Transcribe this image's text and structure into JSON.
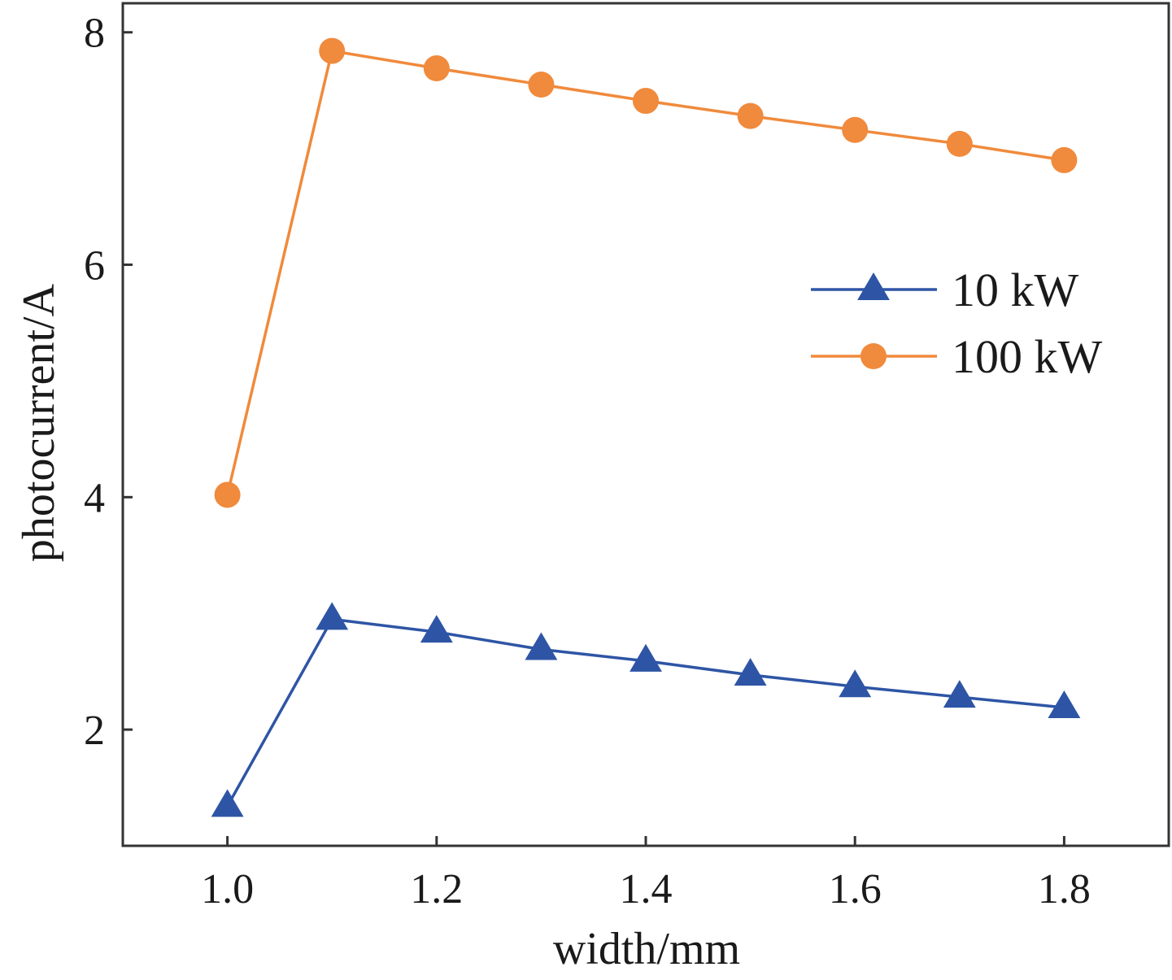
{
  "chart_data": {
    "type": "line",
    "xlabel": "width/mm",
    "ylabel": "photocurrent/A",
    "xlim": [
      0.9,
      1.9
    ],
    "ylim": [
      1.0,
      8.25
    ],
    "xticks": [
      1.0,
      1.2,
      1.4,
      1.6,
      1.8
    ],
    "xtick_labels": [
      "1.0",
      "1.2",
      "1.4",
      "1.6",
      "1.8"
    ],
    "yticks": [
      2,
      4,
      6,
      8
    ],
    "ytick_labels": [
      "2",
      "4",
      "6",
      "8"
    ],
    "grid": false,
    "legend_position": "right",
    "x": [
      1.0,
      1.1,
      1.2,
      1.3,
      1.4,
      1.5,
      1.6,
      1.7,
      1.8
    ],
    "series": [
      {
        "name": "10 kW",
        "marker": "triangle",
        "color": "#2e55a5",
        "values": [
          1.34,
          2.95,
          2.84,
          2.69,
          2.59,
          2.47,
          2.37,
          2.28,
          2.19
        ]
      },
      {
        "name": "100 kW",
        "marker": "circle",
        "color": "#f08a3c",
        "values": [
          4.02,
          7.84,
          7.69,
          7.55,
          7.41,
          7.28,
          7.16,
          7.04,
          6.9
        ]
      }
    ]
  }
}
